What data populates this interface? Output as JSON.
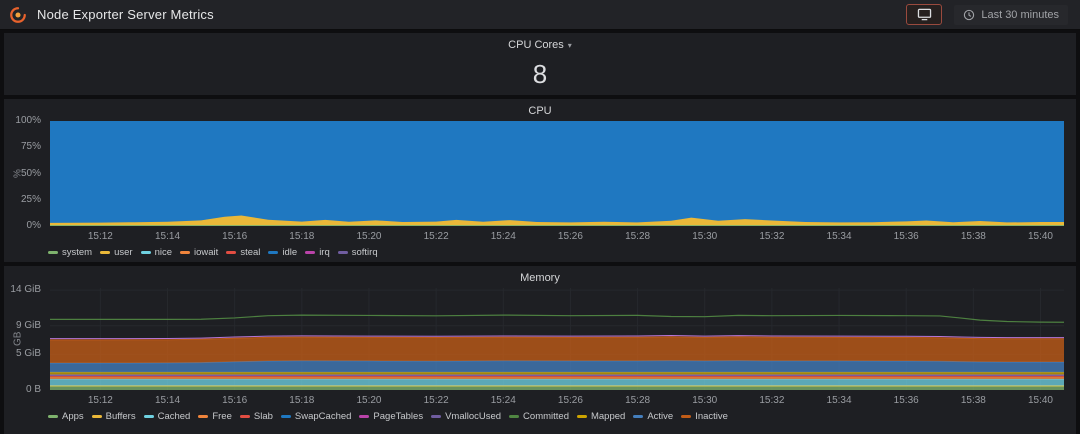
{
  "header": {
    "title": "Node Exporter Server Metrics",
    "time_range_label": "Last 30 minutes"
  },
  "colors": {
    "panel_bg": "#1e1f23",
    "header_bg": "#222327",
    "accent_orange": "#e8622c",
    "tv_button_border": "#9a4a3e"
  },
  "cpu_cores_panel": {
    "title": "CPU Cores",
    "value": "8"
  },
  "cpu_panel": {
    "title": "CPU",
    "chart_data": {
      "type": "area",
      "stacked": true,
      "title": "CPU",
      "xlabel": "",
      "ylabel": "%",
      "ylim": [
        0,
        100
      ],
      "fill_opacity": 1,
      "grid": true,
      "legend_position": "bottom",
      "yticks": [
        {
          "v": 0,
          "label": "0%"
        },
        {
          "v": 25,
          "label": "25%"
        },
        {
          "v": 50,
          "label": "50%"
        },
        {
          "v": 75,
          "label": "75%"
        },
        {
          "v": 100,
          "label": "100%"
        }
      ],
      "x_range_minutes": [
        910.5,
        940.7
      ],
      "xticks": [
        {
          "t": 912,
          "label": "15:12"
        },
        {
          "t": 914,
          "label": "15:14"
        },
        {
          "t": 916,
          "label": "15:16"
        },
        {
          "t": 918,
          "label": "15:18"
        },
        {
          "t": 920,
          "label": "15:20"
        },
        {
          "t": 922,
          "label": "15:22"
        },
        {
          "t": 924,
          "label": "15:24"
        },
        {
          "t": 926,
          "label": "15:26"
        },
        {
          "t": 928,
          "label": "15:28"
        },
        {
          "t": 930,
          "label": "15:30"
        },
        {
          "t": 932,
          "label": "15:32"
        },
        {
          "t": 934,
          "label": "15:34"
        },
        {
          "t": 936,
          "label": "15:36"
        },
        {
          "t": 938,
          "label": "15:38"
        },
        {
          "t": 940,
          "label": "15:40"
        }
      ],
      "x": [
        910.5,
        912,
        913,
        914,
        915,
        915.7,
        916.2,
        917,
        918,
        918.7,
        919.4,
        920.2,
        921,
        922,
        922.6,
        923.4,
        924.2,
        925,
        926,
        927,
        928,
        929,
        929.6,
        930.4,
        931.2,
        932,
        933,
        934,
        935,
        936,
        936.6,
        937.4,
        938.2,
        939,
        940,
        940.7
      ],
      "series": [
        {
          "name": "system",
          "color": "#7EB26D",
          "const": 0.8
        },
        {
          "name": "user",
          "color": "#EAB839",
          "values": [
            2.2,
            2.4,
            2.8,
            3.2,
            4.6,
            8.0,
            9.2,
            5.2,
            3.4,
            5.0,
            3.2,
            4.6,
            3.0,
            3.4,
            5.0,
            3.2,
            4.8,
            3.0,
            2.6,
            3.2,
            2.6,
            4.2,
            7.2,
            4.2,
            5.8,
            4.4,
            3.0,
            2.6,
            2.8,
            3.6,
            4.4,
            2.8,
            4.0,
            2.6,
            3.0,
            3.0
          ]
        },
        {
          "name": "nice",
          "color": "#6ED0E0",
          "const": 0
        },
        {
          "name": "iowait",
          "color": "#EF843C",
          "const": 0
        },
        {
          "name": "steal",
          "color": "#E24D42",
          "const": 0
        },
        {
          "name": "idle",
          "color": "#1F78C1",
          "fill_to": 100
        },
        {
          "name": "irq",
          "color": "#BA43A9",
          "const": 0
        },
        {
          "name": "softirq",
          "color": "#705DA0",
          "const": 0
        }
      ]
    }
  },
  "memory_panel": {
    "title": "Memory",
    "chart_data": {
      "type": "area",
      "stacked": true,
      "title": "Memory",
      "xlabel": "",
      "ylabel": "GB",
      "ylim": [
        0,
        14.3
      ],
      "fill_opacity": 0.78,
      "grid": true,
      "legend_position": "bottom",
      "stack_top_stroke": "#B877D9",
      "yticks": [
        {
          "v": 0,
          "label": "0 B"
        },
        {
          "v": 5,
          "label": "5 GiB"
        },
        {
          "v": 9,
          "label": "9 GiB"
        },
        {
          "v": 14,
          "label": "14 GiB"
        }
      ],
      "x_range_minutes": [
        910.5,
        940.7
      ],
      "xticks": [
        {
          "t": 912,
          "label": "15:12"
        },
        {
          "t": 914,
          "label": "15:14"
        },
        {
          "t": 916,
          "label": "15:16"
        },
        {
          "t": 918,
          "label": "15:18"
        },
        {
          "t": 920,
          "label": "15:20"
        },
        {
          "t": 922,
          "label": "15:22"
        },
        {
          "t": 924,
          "label": "15:24"
        },
        {
          "t": 926,
          "label": "15:26"
        },
        {
          "t": 928,
          "label": "15:28"
        },
        {
          "t": 930,
          "label": "15:30"
        },
        {
          "t": 932,
          "label": "15:32"
        },
        {
          "t": 934,
          "label": "15:34"
        },
        {
          "t": 936,
          "label": "15:36"
        },
        {
          "t": 938,
          "label": "15:38"
        },
        {
          "t": 940,
          "label": "15:40"
        }
      ],
      "x": [
        910.5,
        912,
        914,
        915,
        916,
        917,
        918,
        920,
        922,
        924,
        926,
        928,
        929,
        930,
        931,
        932,
        934,
        936,
        937,
        937.6,
        938.2,
        939,
        940,
        940.7
      ],
      "series": [
        {
          "name": "Apps",
          "color": "#7EB26D",
          "const": 0.5
        },
        {
          "name": "Buffers",
          "color": "#EAB839",
          "const": 0.12
        },
        {
          "name": "Cached",
          "color": "#6ED0E0",
          "const": 0.9
        },
        {
          "name": "Free",
          "color": "#EF843C",
          "const": 0.3
        },
        {
          "name": "Slab",
          "color": "#E24D42",
          "const": 0.2
        },
        {
          "name": "SwapCached",
          "color": "#1F78C1",
          "const": 0.05
        },
        {
          "name": "PageTables",
          "color": "#BA43A9",
          "const": 0.06
        },
        {
          "name": "VmallocUsed",
          "color": "#705DA0",
          "const": 0.05
        },
        {
          "name": "Committed",
          "color": "#508642",
          "line": true,
          "values": [
            9.9,
            9.9,
            9.9,
            9.92,
            10.1,
            10.42,
            10.5,
            10.45,
            10.4,
            10.5,
            10.42,
            10.46,
            10.3,
            10.28,
            10.46,
            10.42,
            10.45,
            10.42,
            10.38,
            10.1,
            9.8,
            9.6,
            9.52,
            9.5
          ]
        },
        {
          "name": "Mapped",
          "color": "#CCA300",
          "const": 0.3
        },
        {
          "name": "Active",
          "color": "#447EBC",
          "values": [
            1.3,
            1.3,
            1.32,
            1.35,
            1.48,
            1.58,
            1.62,
            1.6,
            1.56,
            1.62,
            1.6,
            1.6,
            1.63,
            1.6,
            1.63,
            1.6,
            1.6,
            1.58,
            1.55,
            1.5,
            1.47,
            1.45,
            1.45,
            1.45
          ]
        },
        {
          "name": "Inactive",
          "color": "#C15C17",
          "values": [
            3.25,
            3.25,
            3.25,
            3.28,
            3.3,
            3.32,
            3.32,
            3.3,
            3.32,
            3.3,
            3.3,
            3.32,
            3.36,
            3.3,
            3.35,
            3.32,
            3.3,
            3.3,
            3.3,
            3.28,
            3.26,
            3.25,
            3.25,
            3.25
          ]
        }
      ]
    }
  }
}
